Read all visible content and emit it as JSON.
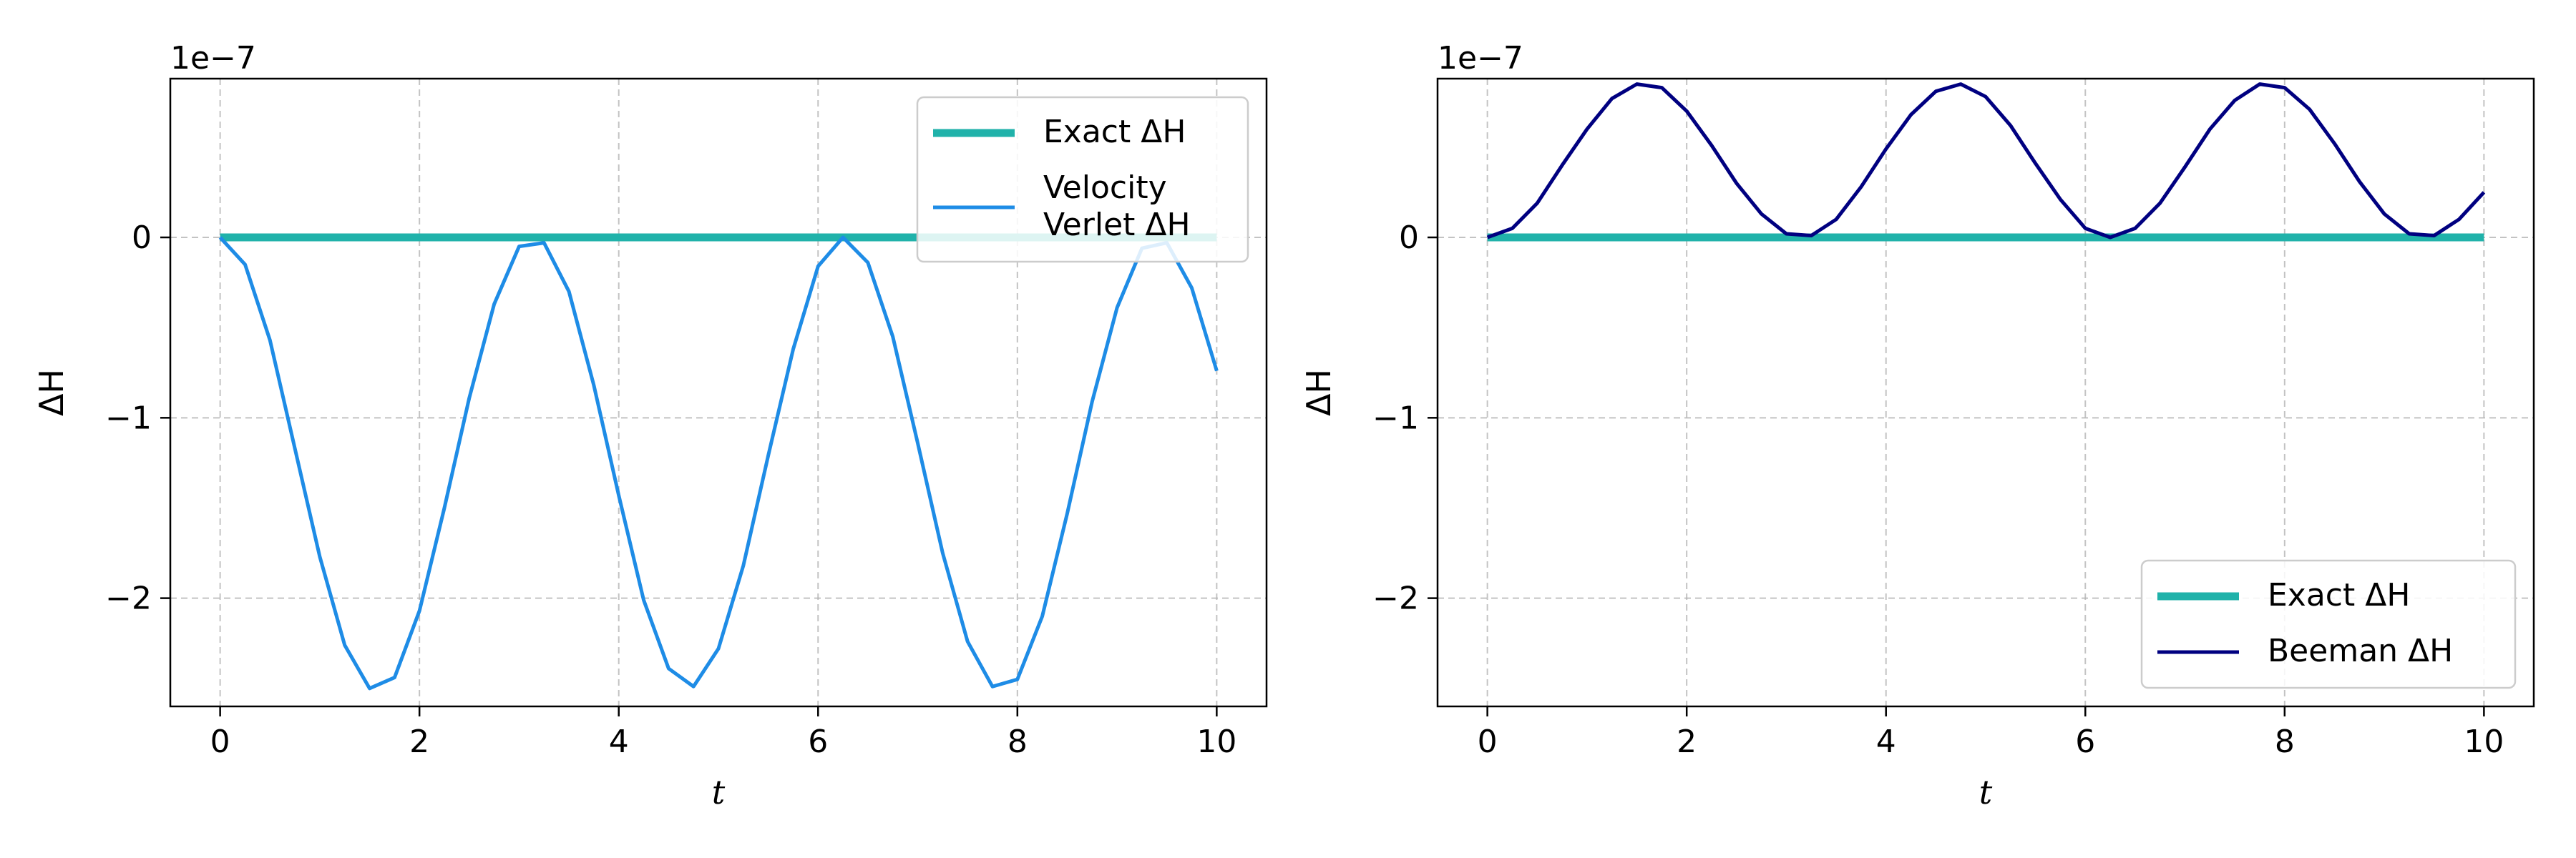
{
  "chart_data": [
    {
      "type": "line",
      "xlabel": "t",
      "ylabel": "ΔH",
      "y_offset_label": "1e−7",
      "xlim": [
        -0.5,
        10.5
      ],
      "ylim": [
        -2.6,
        0.88
      ],
      "y_scale_note": "values in units of 1e-7",
      "x_ticks": [
        0,
        2,
        4,
        6,
        8,
        10
      ],
      "x_tick_labels": [
        "0",
        "2",
        "4",
        "6",
        "8",
        "10"
      ],
      "y_ticks": [
        -2,
        -1,
        0
      ],
      "y_tick_labels": [
        "−2",
        "−1",
        "0"
      ],
      "grid": true,
      "legend_position": "upper-right",
      "series": [
        {
          "name": "Exact ΔH",
          "color": "#20b2aa",
          "x": [
            0,
            10
          ],
          "y": [
            0,
            0
          ]
        },
        {
          "name": "Velocity Verlet ΔH",
          "legend_lines": [
            "Velocity",
            "Verlet ΔH"
          ],
          "color": "#1e8ce6",
          "x": [
            0,
            0.25,
            0.5,
            0.75,
            1.0,
            1.25,
            1.5,
            1.75,
            2.0,
            2.25,
            2.5,
            2.75,
            3.0,
            3.25,
            3.5,
            3.75,
            4.0,
            4.25,
            4.5,
            4.75,
            5.0,
            5.25,
            5.5,
            5.75,
            6.0,
            6.25,
            6.5,
            6.75,
            7.0,
            7.25,
            7.5,
            7.75,
            8.0,
            8.25,
            8.5,
            8.75,
            9.0,
            9.25,
            9.5,
            9.75,
            10.0
          ],
          "y": [
            0,
            -0.15,
            -0.57,
            -1.17,
            -1.77,
            -2.26,
            -2.5,
            -2.44,
            -2.07,
            -1.5,
            -0.89,
            -0.37,
            -0.05,
            -0.03,
            -0.3,
            -0.82,
            -1.43,
            -2.01,
            -2.39,
            -2.49,
            -2.28,
            -1.82,
            -1.21,
            -0.62,
            -0.16,
            0.0,
            -0.14,
            -0.55,
            -1.14,
            -1.75,
            -2.24,
            -2.49,
            -2.45,
            -2.1,
            -1.53,
            -0.91,
            -0.39,
            -0.06,
            -0.03,
            -0.28,
            -0.74
          ]
        }
      ]
    },
    {
      "type": "line",
      "xlabel": "t",
      "ylabel": "ΔH",
      "y_offset_label": "1e−7",
      "xlim": [
        -0.5,
        10.5
      ],
      "ylim": [
        -2.6,
        0.88
      ],
      "y_scale_note": "values in units of 1e-7",
      "x_ticks": [
        0,
        2,
        4,
        6,
        8,
        10
      ],
      "x_tick_labels": [
        "0",
        "2",
        "4",
        "6",
        "8",
        "10"
      ],
      "y_ticks": [
        -2,
        -1,
        0
      ],
      "y_tick_labels": [
        "−2",
        "−1",
        "0"
      ],
      "grid": true,
      "legend_position": "lower-right",
      "series": [
        {
          "name": "Exact ΔH",
          "color": "#20b2aa",
          "x": [
            0,
            10
          ],
          "y": [
            0,
            0
          ]
        },
        {
          "name": "Beeman ΔH",
          "legend_lines": [
            "Beeman ΔH"
          ],
          "color": "#000080",
          "x": [
            0,
            0.25,
            0.5,
            0.75,
            1.0,
            1.25,
            1.5,
            1.75,
            2.0,
            2.25,
            2.5,
            2.75,
            3.0,
            3.25,
            3.5,
            3.75,
            4.0,
            4.25,
            4.5,
            4.75,
            5.0,
            5.25,
            5.5,
            5.75,
            6.0,
            6.25,
            6.5,
            6.75,
            7.0,
            7.25,
            7.5,
            7.75,
            8.0,
            8.25,
            8.5,
            8.75,
            9.0,
            9.25,
            9.5,
            9.75,
            10.0
          ],
          "y": [
            0,
            0.05,
            0.19,
            0.4,
            0.6,
            0.77,
            0.85,
            0.83,
            0.7,
            0.51,
            0.3,
            0.13,
            0.02,
            0.01,
            0.1,
            0.28,
            0.49,
            0.68,
            0.81,
            0.85,
            0.78,
            0.62,
            0.41,
            0.21,
            0.05,
            0.0,
            0.05,
            0.19,
            0.39,
            0.6,
            0.76,
            0.85,
            0.83,
            0.71,
            0.52,
            0.31,
            0.13,
            0.02,
            0.01,
            0.1,
            0.25
          ]
        }
      ]
    }
  ]
}
